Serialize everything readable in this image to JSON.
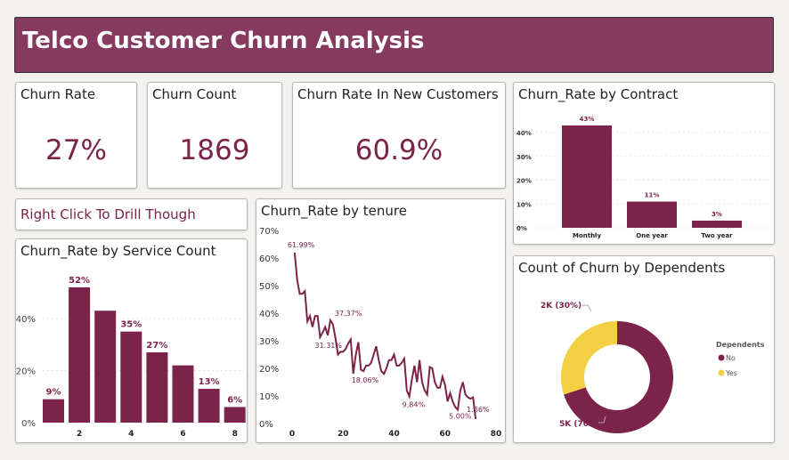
{
  "header": {
    "title": "Telco Customer Churn Analysis"
  },
  "kpis": [
    {
      "label": "Churn Rate",
      "value": "27%"
    },
    {
      "label": "Churn Count",
      "value": "1869"
    },
    {
      "label": "Churn Rate In New Customers",
      "value": "60.9%"
    }
  ],
  "drill": {
    "label": "Right Click To Drill Though"
  },
  "colors": {
    "primary": "#7b2349",
    "yes": "#f2cf43",
    "banner": "#873a60"
  },
  "chart_data": [
    {
      "type": "bar",
      "title": "Churn_Rate by Service Count",
      "categories": [
        1,
        2,
        3,
        4,
        5,
        6,
        7,
        8
      ],
      "values": [
        9,
        52,
        43,
        35,
        27,
        22,
        13,
        6
      ],
      "data_labels": {
        "1": "9%",
        "2": "52%",
        "4": "35%",
        "5": "27%",
        "7": "13%",
        "8": "6%"
      },
      "xticks": [
        "2",
        "4",
        "6",
        "8"
      ],
      "yticks": [
        "0%",
        "20%",
        "40%"
      ],
      "ylim": [
        0,
        55
      ]
    },
    {
      "type": "line",
      "title": "Churn_Rate by tenure",
      "xlim": [
        0,
        80
      ],
      "ylim": [
        0,
        70
      ],
      "xticks": [
        "0",
        "20",
        "40",
        "60",
        "80"
      ],
      "yticks": [
        "0%",
        "10%",
        "20%",
        "30%",
        "40%",
        "50%",
        "60%",
        "70%"
      ],
      "x": [
        1,
        2,
        3,
        4,
        5,
        6,
        7,
        8,
        9,
        10,
        11,
        12,
        13,
        14,
        15,
        16,
        17,
        18,
        19,
        20,
        21,
        22,
        23,
        24,
        25,
        26,
        27,
        28,
        29,
        30,
        31,
        32,
        33,
        34,
        35,
        36,
        37,
        38,
        39,
        40,
        41,
        42,
        43,
        44,
        45,
        46,
        47,
        48,
        49,
        50,
        51,
        52,
        53,
        54,
        55,
        56,
        57,
        58,
        59,
        60,
        61,
        62,
        63,
        64,
        65,
        66,
        67,
        68,
        69,
        70,
        71,
        72
      ],
      "y": [
        61.99,
        52,
        47,
        47,
        48,
        37,
        39,
        35,
        39,
        39,
        31.31,
        33,
        35,
        32,
        37.37,
        36,
        31,
        25,
        26,
        26,
        27,
        29,
        30.5,
        18.06,
        25,
        29.5,
        19.5,
        19,
        21,
        21,
        22,
        25,
        28,
        23,
        19,
        18,
        20,
        23,
        23,
        25,
        21,
        21,
        22,
        23.5,
        12,
        9.84,
        16,
        21,
        15,
        23,
        15,
        12,
        10.5,
        20.5,
        20,
        15,
        13,
        13,
        17,
        14,
        8,
        11,
        8,
        6,
        5.0,
        12,
        15,
        10.5,
        9.5,
        9,
        9.5,
        1.66
      ],
      "labels": [
        {
          "x": 1,
          "y": 61.99,
          "text": "61.99%"
        },
        {
          "x": 15,
          "y": 37.37,
          "text": "37.37%"
        },
        {
          "x": 11,
          "y": 31.31,
          "text": "31.31%"
        },
        {
          "x": 24,
          "y": 18.06,
          "text": "18.06%"
        },
        {
          "x": 46,
          "y": 9.84,
          "text": "9.84%"
        },
        {
          "x": 65,
          "y": 5.0,
          "text": "5.00%"
        },
        {
          "x": 72,
          "y": 1.66,
          "text": "1.66%"
        }
      ]
    },
    {
      "type": "bar",
      "title": "Churn_Rate by Contract",
      "categories": [
        "Monthly",
        "One year",
        "Two year"
      ],
      "values": [
        43,
        11,
        3
      ],
      "data_labels": [
        "43%",
        "11%",
        "3%"
      ],
      "yticks": [
        "0%",
        "10%",
        "20%",
        "30%",
        "40%"
      ],
      "ylim": [
        0,
        45
      ]
    },
    {
      "type": "pie",
      "title": "Count of Churn by Dependents",
      "legend_title": "Dependents",
      "slices": [
        {
          "name": "No",
          "value": 70,
          "label": "5K (70%)"
        },
        {
          "name": "Yes",
          "value": 30,
          "label": "2K (30%)"
        }
      ]
    }
  ]
}
